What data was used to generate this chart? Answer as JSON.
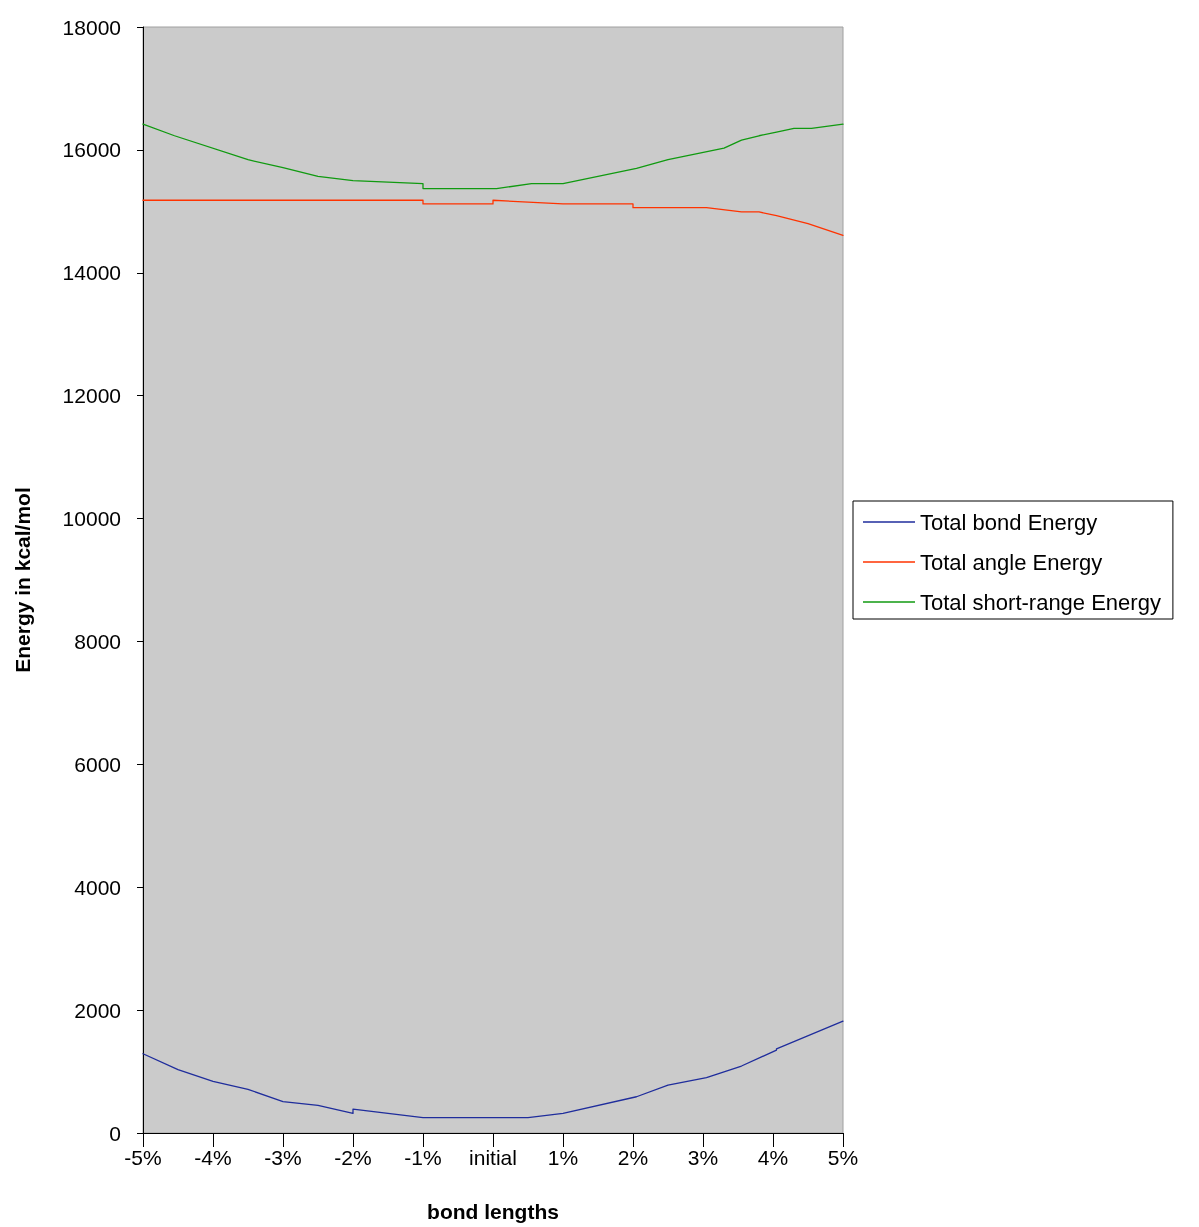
{
  "chart_data": {
    "type": "line",
    "xlabel": "bond lengths",
    "ylabel": "Energy in kcal/mol",
    "xlim": [
      -5,
      5
    ],
    "xticks": [
      {
        "value": -5,
        "label": "-5%"
      },
      {
        "value": -4,
        "label": "-4%"
      },
      {
        "value": -3,
        "label": "-3%"
      },
      {
        "value": -2,
        "label": "-2%"
      },
      {
        "value": -1,
        "label": "-1%"
      },
      {
        "value": 0,
        "label": "initial"
      },
      {
        "value": 1,
        "label": "1%"
      },
      {
        "value": 2,
        "label": "2%"
      },
      {
        "value": 3,
        "label": "3%"
      },
      {
        "value": 4,
        "label": "4%"
      },
      {
        "value": 5,
        "label": "5%"
      }
    ],
    "ylim": [
      0,
      18000
    ],
    "yticks": [
      0,
      2000,
      4000,
      6000,
      8000,
      10000,
      12000,
      14000,
      16000,
      18000
    ],
    "grid": false,
    "legend": "right",
    "marker": "none",
    "line_style": "solid",
    "series": [
      {
        "name": "Total bond Energy",
        "color": "#1f2d9c",
        "x": [
          -5,
          -4.5,
          -4,
          -3.5,
          -3,
          -2.5,
          -2,
          -2,
          -1,
          0.5,
          1,
          2.05,
          2.5,
          3.05,
          3.55,
          4.05,
          4.05,
          5
        ],
        "values": [
          1290,
          1030,
          840,
          710,
          510,
          450,
          320,
          390,
          250,
          250,
          320,
          590,
          780,
          900,
          1090,
          1350,
          1370,
          1820
        ]
      },
      {
        "name": "Total angle Energy",
        "color": "#ff3300",
        "x": [
          -5,
          -1,
          -1,
          0,
          0,
          1,
          2,
          2,
          3.05,
          3.55,
          3.8,
          4.05,
          4.5,
          5
        ],
        "values": [
          15180,
          15180,
          15120,
          15120,
          15180,
          15120,
          15120,
          15060,
          15060,
          14990,
          14990,
          14930,
          14800,
          14610
        ]
      },
      {
        "name": "Total short-range Energy",
        "color": "#109a10",
        "x": [
          -5,
          -4.55,
          -3.5,
          -3,
          -2.5,
          -2,
          -1,
          -1,
          0.05,
          0.55,
          1,
          2.05,
          2.5,
          3.3,
          3.55,
          3.8,
          4.05,
          4.3,
          4.55,
          5
        ],
        "values": [
          16420,
          16230,
          15840,
          15710,
          15570,
          15500,
          15450,
          15370,
          15370,
          15450,
          15450,
          15700,
          15840,
          16030,
          16160,
          16230,
          16290,
          16350,
          16350,
          16420
        ]
      }
    ]
  }
}
